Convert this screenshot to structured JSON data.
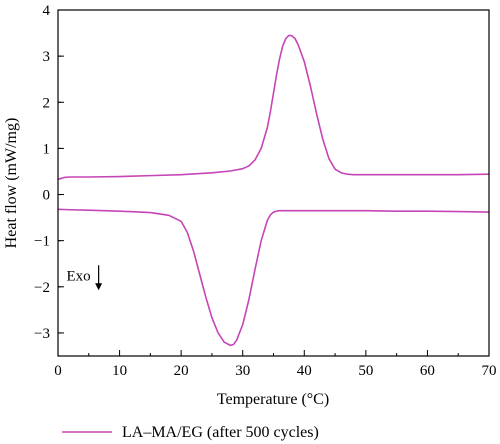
{
  "chart_data": {
    "type": "line",
    "xlabel": "Temperature (°C)",
    "ylabel": "Heat flow (mW/mg)",
    "xlim": [
      0,
      70
    ],
    "ylim": [
      -3.5,
      4
    ],
    "x_ticks": [
      0,
      10,
      20,
      30,
      40,
      50,
      60,
      70
    ],
    "y_ticks": [
      -3,
      -2,
      -1,
      0,
      1,
      2,
      3,
      4
    ],
    "grid": false,
    "legend_position": "bottom-left, below plot",
    "series_color": "#c545b7",
    "annotation": {
      "text": "Exo",
      "arrow": "down",
      "x": 5.3,
      "y": -1.75
    },
    "series": [
      {
        "name": "LA–MA/EG (after 500 cycles)",
        "x": [
          0,
          1,
          2,
          5,
          10,
          15,
          20,
          25,
          28,
          30,
          31,
          32,
          33,
          34,
          34.5,
          35,
          35.5,
          36,
          36.5,
          37,
          37.5,
          38,
          38.5,
          39,
          40,
          41,
          42,
          43,
          44,
          45,
          46,
          47,
          48,
          50,
          55,
          60,
          65,
          70
        ],
        "y": [
          0.33,
          0.37,
          0.38,
          0.38,
          0.39,
          0.41,
          0.43,
          0.47,
          0.51,
          0.56,
          0.62,
          0.75,
          1.0,
          1.45,
          1.8,
          2.2,
          2.6,
          2.95,
          3.22,
          3.38,
          3.45,
          3.44,
          3.38,
          3.25,
          2.88,
          2.35,
          1.75,
          1.2,
          0.78,
          0.55,
          0.47,
          0.44,
          0.43,
          0.43,
          0.43,
          0.43,
          0.43,
          0.44
        ]
      },
      {
        "name": "",
        "x": [
          0,
          2,
          5,
          10,
          15,
          18,
          20,
          21,
          22,
          23,
          24,
          25,
          26,
          27,
          28,
          28.5,
          29,
          30,
          31,
          32,
          33,
          34,
          34.5,
          35,
          35.5,
          36,
          40,
          45,
          50,
          55,
          60,
          65,
          70
        ],
        "y": [
          -0.32,
          -0.33,
          -0.34,
          -0.36,
          -0.39,
          -0.45,
          -0.58,
          -0.82,
          -1.22,
          -1.72,
          -2.22,
          -2.67,
          -3.0,
          -3.2,
          -3.27,
          -3.25,
          -3.16,
          -2.82,
          -2.28,
          -1.62,
          -1.0,
          -0.56,
          -0.44,
          -0.38,
          -0.36,
          -0.35,
          -0.35,
          -0.35,
          -0.35,
          -0.36,
          -0.36,
          -0.37,
          -0.38
        ]
      }
    ]
  }
}
